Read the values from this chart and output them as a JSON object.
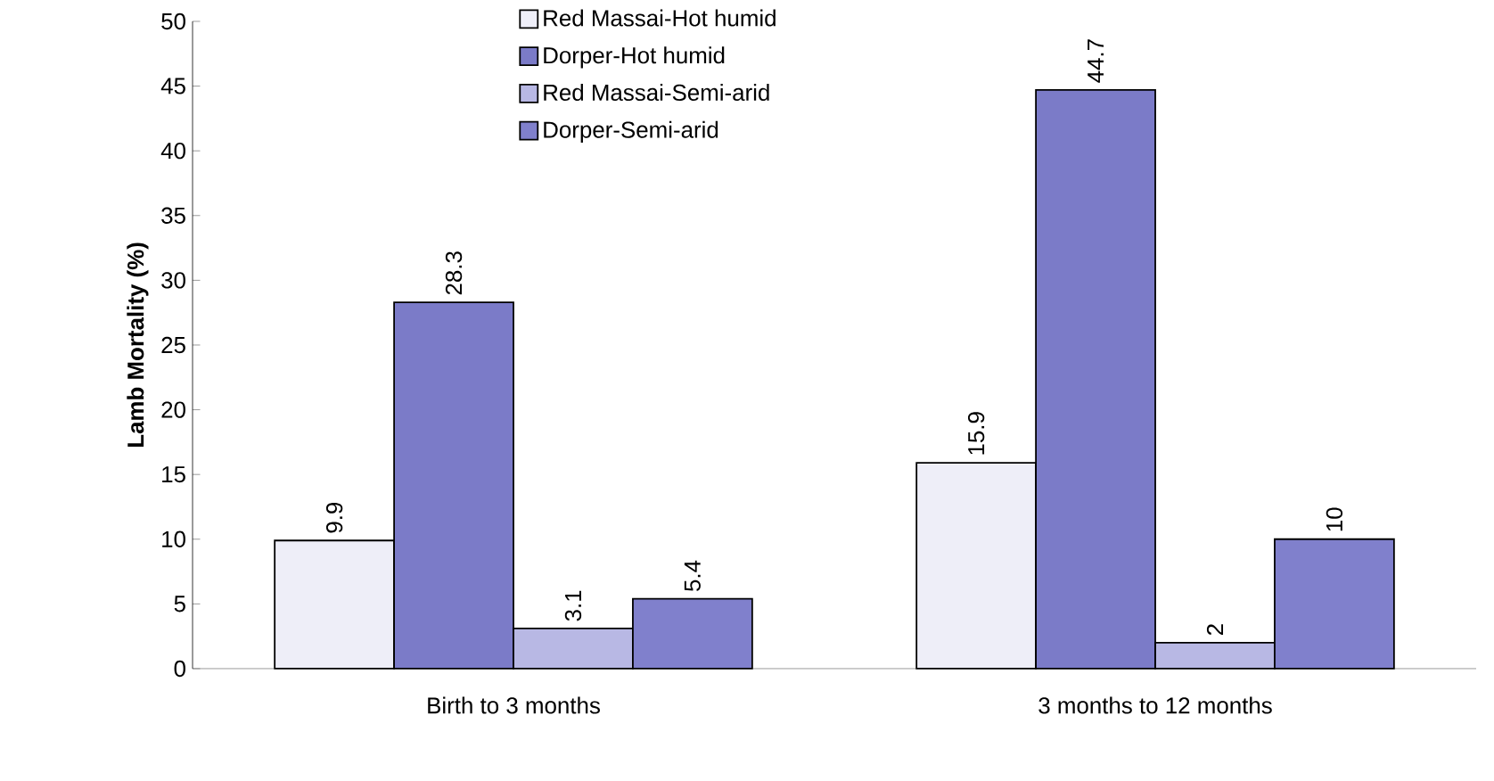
{
  "chart_data": {
    "type": "bar",
    "ylabel": "Lamb Mortality (%)",
    "categories": [
      "Birth to 3 months",
      "3 months  to 12 months"
    ],
    "series": [
      {
        "name": "Red Massai-Hot humid",
        "color": "#eeeef8",
        "values": [
          9.9,
          15.9
        ]
      },
      {
        "name": "Dorper-Hot humid",
        "color": "#7b7bc8",
        "values": [
          28.3,
          44.7
        ]
      },
      {
        "name": "Red Massai-Semi-arid",
        "color": "#b8b8e4",
        "values": [
          3.1,
          2
        ]
      },
      {
        "name": "Dorper-Semi-arid",
        "color": "#8080cc",
        "values": [
          5.4,
          10
        ]
      }
    ],
    "ylim": [
      0,
      50
    ],
    "yticks": [
      0,
      5,
      10,
      15,
      20,
      25,
      30,
      35,
      40,
      45,
      50
    ],
    "data_labels": true,
    "legend": "top",
    "grid": false
  }
}
